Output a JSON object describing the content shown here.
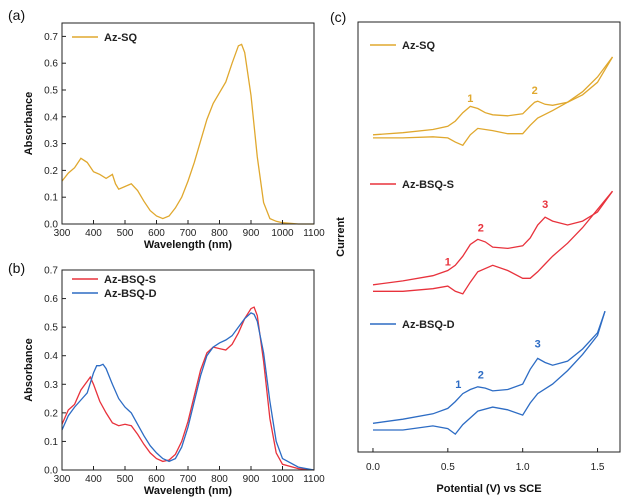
{
  "colors": {
    "orange": "#E0A82E",
    "red": "#E8323C",
    "blue": "#2D6CC4",
    "axis": "#222222"
  },
  "chart_data": [
    {
      "panel": "(a)",
      "type": "line",
      "xlabel": "Wavelength (nm)",
      "ylabel": "Absorbance",
      "xlim": [
        300,
        1100
      ],
      "ylim": [
        0,
        0.75
      ],
      "xticks": [
        "300",
        "400",
        "500",
        "600",
        "700",
        "800",
        "900",
        "1000",
        "1100"
      ],
      "yticks": [
        "0.0",
        "0.1",
        "0.2",
        "0.3",
        "0.4",
        "0.5",
        "0.6",
        "0.7"
      ],
      "legend_position": "top-left",
      "series": [
        {
          "name": "Az-SQ",
          "color": "#E0A82E",
          "x": [
            300,
            320,
            340,
            360,
            380,
            400,
            420,
            440,
            460,
            470,
            480,
            500,
            520,
            540,
            560,
            580,
            600,
            620,
            640,
            660,
            680,
            700,
            720,
            740,
            760,
            780,
            800,
            820,
            840,
            860,
            870,
            880,
            900,
            920,
            940,
            960,
            980,
            1000,
            1050,
            1100
          ],
          "y": [
            0.16,
            0.19,
            0.21,
            0.245,
            0.23,
            0.195,
            0.185,
            0.17,
            0.185,
            0.15,
            0.13,
            0.14,
            0.15,
            0.125,
            0.085,
            0.05,
            0.03,
            0.02,
            0.03,
            0.06,
            0.1,
            0.16,
            0.23,
            0.31,
            0.39,
            0.45,
            0.49,
            0.53,
            0.6,
            0.665,
            0.67,
            0.64,
            0.48,
            0.25,
            0.08,
            0.02,
            0.01,
            0.005,
            0.0,
            0.0
          ]
        }
      ]
    },
    {
      "panel": "(b)",
      "type": "line",
      "xlabel": "Wavelength (nm)",
      "ylabel": "Absorbance",
      "xlim": [
        300,
        1100
      ],
      "ylim": [
        0,
        0.7
      ],
      "xticks": [
        "300",
        "400",
        "500",
        "600",
        "700",
        "800",
        "900",
        "1000",
        "1100"
      ],
      "yticks": [
        "0.0",
        "0.1",
        "0.2",
        "0.3",
        "0.4",
        "0.5",
        "0.6",
        "0.7"
      ],
      "legend_position": "top-left",
      "series": [
        {
          "name": "Az-BSQ-S",
          "color": "#E8323C",
          "x": [
            300,
            320,
            340,
            360,
            380,
            390,
            400,
            420,
            440,
            460,
            480,
            500,
            520,
            540,
            560,
            580,
            600,
            620,
            640,
            660,
            680,
            700,
            720,
            740,
            760,
            780,
            800,
            820,
            840,
            860,
            880,
            900,
            910,
            920,
            940,
            960,
            980,
            1000,
            1050,
            1100
          ],
          "y": [
            0.16,
            0.21,
            0.23,
            0.28,
            0.31,
            0.325,
            0.3,
            0.24,
            0.2,
            0.165,
            0.155,
            0.16,
            0.155,
            0.125,
            0.09,
            0.06,
            0.04,
            0.03,
            0.035,
            0.055,
            0.1,
            0.17,
            0.26,
            0.35,
            0.41,
            0.43,
            0.425,
            0.42,
            0.44,
            0.48,
            0.53,
            0.565,
            0.57,
            0.54,
            0.38,
            0.18,
            0.06,
            0.02,
            0.005,
            0.0
          ]
        },
        {
          "name": "Az-BSQ-D",
          "color": "#2D6CC4",
          "x": [
            300,
            320,
            340,
            360,
            380,
            400,
            410,
            420,
            430,
            440,
            460,
            480,
            500,
            520,
            540,
            560,
            580,
            600,
            620,
            640,
            660,
            680,
            700,
            720,
            740,
            760,
            780,
            800,
            820,
            840,
            860,
            880,
            900,
            910,
            920,
            940,
            960,
            980,
            1000,
            1050,
            1100
          ],
          "y": [
            0.14,
            0.19,
            0.22,
            0.245,
            0.27,
            0.34,
            0.365,
            0.365,
            0.37,
            0.355,
            0.3,
            0.25,
            0.22,
            0.2,
            0.16,
            0.12,
            0.085,
            0.06,
            0.04,
            0.03,
            0.04,
            0.08,
            0.15,
            0.24,
            0.33,
            0.4,
            0.43,
            0.445,
            0.455,
            0.47,
            0.5,
            0.53,
            0.55,
            0.545,
            0.52,
            0.41,
            0.24,
            0.1,
            0.04,
            0.01,
            0.0
          ]
        }
      ]
    },
    {
      "panel": "(c)",
      "type": "line",
      "xlabel": "Potential (V) vs SCE",
      "ylabel": "Current",
      "xlim": [
        -0.1,
        1.65
      ],
      "xticks": [
        "0.0",
        "0.5",
        "1.0",
        "1.5"
      ],
      "series": [
        {
          "name": "Az-SQ",
          "color": "#E0A82E",
          "x": [
            0.0,
            0.2,
            0.4,
            0.5,
            0.55,
            0.6,
            0.65,
            0.7,
            0.75,
            0.8,
            0.9,
            1.0,
            1.05,
            1.08,
            1.1,
            1.15,
            1.2,
            1.3,
            1.4,
            1.5,
            1.6
          ],
          "y": [
            0.5,
            0.7,
            1.0,
            1.3,
            1.8,
            2.6,
            3.2,
            3.0,
            2.6,
            2.4,
            2.3,
            2.5,
            3.2,
            3.6,
            3.7,
            3.4,
            3.3,
            3.6,
            4.3,
            5.5,
            7.9
          ],
          "x_return": [
            1.6,
            1.5,
            1.4,
            1.3,
            1.2,
            1.1,
            1.05,
            1.0,
            0.9,
            0.8,
            0.7,
            0.65,
            0.6,
            0.55,
            0.5,
            0.4,
            0.2,
            0.0
          ],
          "y_return": [
            7.9,
            6.0,
            4.6,
            3.6,
            2.8,
            2.1,
            1.4,
            0.6,
            0.6,
            0.9,
            1.1,
            0.5,
            -0.5,
            -0.2,
            0.2,
            0.3,
            0.2,
            0.2
          ],
          "peak_labels": [
            {
              "text": "1",
              "x": 0.65,
              "y": 3.6
            },
            {
              "text": "2",
              "x": 1.08,
              "y": 4.4
            }
          ]
        },
        {
          "name": "Az-BSQ-S",
          "color": "#E8323C",
          "x": [
            0.0,
            0.2,
            0.4,
            0.5,
            0.55,
            0.6,
            0.65,
            0.7,
            0.75,
            0.8,
            0.9,
            1.0,
            1.05,
            1.1,
            1.15,
            1.2,
            1.3,
            1.4,
            1.5,
            1.6
          ],
          "y": [
            0.4,
            0.7,
            1.1,
            1.5,
            1.9,
            2.6,
            3.5,
            3.9,
            3.7,
            3.3,
            3.2,
            3.4,
            4.0,
            5.0,
            5.6,
            5.3,
            5.0,
            5.3,
            6.0,
            7.6
          ],
          "x_return": [
            1.6,
            1.5,
            1.4,
            1.3,
            1.2,
            1.15,
            1.1,
            1.05,
            1.0,
            0.9,
            0.8,
            0.7,
            0.65,
            0.6,
            0.55,
            0.5,
            0.4,
            0.2,
            0.0
          ],
          "y_return": [
            7.6,
            6.2,
            4.8,
            3.6,
            2.6,
            2.0,
            1.4,
            0.9,
            0.9,
            1.5,
            1.9,
            1.4,
            0.6,
            -0.3,
            -0.1,
            0.3,
            0.1,
            -0.1,
            -0.1
          ],
          "peak_labels": [
            {
              "text": "1",
              "x": 0.5,
              "y": 1.9
            },
            {
              "text": "2",
              "x": 0.72,
              "y": 4.5
            },
            {
              "text": "3",
              "x": 1.15,
              "y": 6.3
            }
          ]
        },
        {
          "name": "Az-BSQ-D",
          "color": "#2D6CC4",
          "x": [
            0.0,
            0.2,
            0.4,
            0.5,
            0.55,
            0.6,
            0.65,
            0.7,
            0.75,
            0.8,
            0.9,
            1.0,
            1.05,
            1.1,
            1.15,
            1.2,
            1.3,
            1.4,
            1.5,
            1.55
          ],
          "y": [
            0.5,
            0.8,
            1.2,
            1.6,
            2.1,
            2.7,
            3.0,
            3.2,
            3.1,
            2.9,
            3.0,
            3.4,
            4.5,
            5.3,
            5.0,
            4.8,
            5.1,
            6.0,
            7.2,
            8.8
          ],
          "x_return": [
            1.55,
            1.5,
            1.4,
            1.3,
            1.2,
            1.1,
            1.05,
            1.0,
            0.9,
            0.8,
            0.7,
            0.65,
            0.6,
            0.55,
            0.5,
            0.4,
            0.2,
            0.0
          ],
          "y_return": [
            8.8,
            7.0,
            5.6,
            4.4,
            3.4,
            2.7,
            2.0,
            1.1,
            1.5,
            1.7,
            1.4,
            0.9,
            0.4,
            -0.3,
            0.1,
            0.3,
            0.0,
            0.0
          ],
          "peak_labels": [
            {
              "text": "1",
              "x": 0.57,
              "y": 3.1
            },
            {
              "text": "2",
              "x": 0.72,
              "y": 3.8
            },
            {
              "text": "3",
              "x": 1.1,
              "y": 6.1
            }
          ]
        }
      ]
    }
  ]
}
